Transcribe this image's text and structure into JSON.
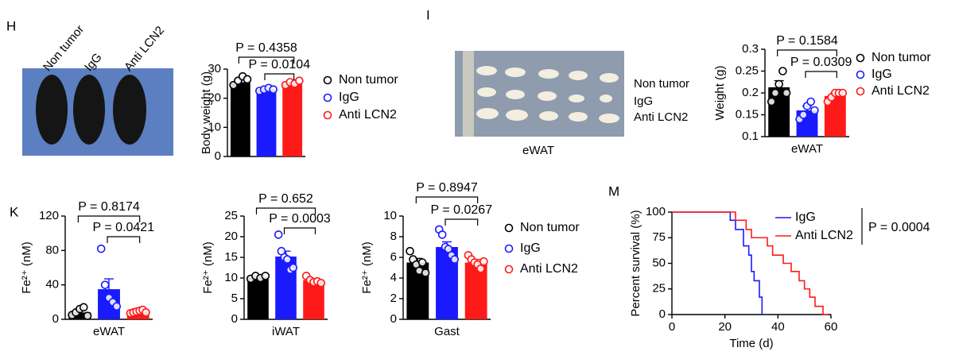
{
  "images": [
    {
      "panel": "H",
      "labels": [
        "Non tumor",
        "IgG",
        "Anti LCN2"
      ]
    },
    {
      "panel": "I",
      "labels": [
        "Non tumor",
        "IgG",
        "Anti LCN2"
      ],
      "caption": "eWAT"
    }
  ],
  "chart_data": [
    {
      "type": "bar",
      "ylabel": "Body weight (g)",
      "ylim": [
        0,
        30
      ],
      "yticks": [
        0,
        10,
        20,
        30
      ],
      "legend": true,
      "annotations": [
        "P = 0.4358",
        "P = 0.0104"
      ],
      "series": [
        {
          "name": "Non tumor",
          "color": "#000000",
          "values": [
            25.5
          ],
          "errors": [
            1
          ],
          "points": [
            24.5,
            26,
            27.5,
            26.5
          ]
        },
        {
          "name": "IgG",
          "color": "#1a1aff",
          "values": [
            23
          ],
          "errors": [
            0.4
          ],
          "points": [
            22.5,
            23,
            23.5,
            23
          ]
        },
        {
          "name": "Anti LCN2",
          "color": "#ff1a1a",
          "values": [
            25
          ],
          "errors": [
            0.4
          ],
          "points": [
            24.5,
            25.5,
            25,
            26
          ]
        }
      ]
    },
    {
      "type": "bar",
      "ylabel": "Weight (g)",
      "xlabel": "eWAT",
      "ylim": [
        0.1,
        0.3
      ],
      "yticks": [
        0.1,
        0.15,
        0.2,
        0.25,
        0.3
      ],
      "legend": true,
      "annotations": [
        "P = 0.1584",
        "P = 0.0309"
      ],
      "series": [
        {
          "name": "Non tumor",
          "color": "#000000",
          "values": [
            0.213
          ],
          "errors": [
            0.015
          ],
          "points": [
            0.18,
            0.2,
            0.22,
            0.25,
            0.2
          ]
        },
        {
          "name": "IgG",
          "color": "#1a1aff",
          "values": [
            0.16
          ],
          "errors": [
            0.01
          ],
          "points": [
            0.14,
            0.15,
            0.17,
            0.18,
            0.16
          ]
        },
        {
          "name": "Anti LCN2",
          "color": "#ff1a1a",
          "values": [
            0.193
          ],
          "errors": [
            0.007
          ],
          "points": [
            0.18,
            0.19,
            0.2,
            0.2,
            0.2
          ]
        }
      ]
    },
    {
      "type": "bar",
      "panel": "K",
      "ylabel": "Fe²⁺ (nM)",
      "xlabel": "eWAT",
      "ylim": [
        0,
        120
      ],
      "yticks": [
        0,
        40,
        80,
        120
      ],
      "legend": false,
      "annotations": [
        "P = 0.8174",
        "P = 0.0421"
      ],
      "series": [
        {
          "name": "Non tumor",
          "color": "#000000",
          "values": [
            8
          ],
          "errors": [
            3
          ],
          "points": [
            5,
            8,
            12,
            14,
            4
          ]
        },
        {
          "name": "IgG",
          "color": "#1a1aff",
          "values": [
            35
          ],
          "errors": [
            12
          ],
          "points": [
            82,
            40,
            25,
            20,
            15
          ]
        },
        {
          "name": "Anti LCN2",
          "color": "#ff1a1a",
          "values": [
            9
          ],
          "errors": [
            2
          ],
          "points": [
            7,
            8,
            9,
            10,
            11,
            8
          ]
        }
      ]
    },
    {
      "type": "bar",
      "ylabel": "Fe²⁺ (nM)",
      "xlabel": "iWAT",
      "ylim": [
        0,
        25
      ],
      "yticks": [
        0,
        5,
        10,
        15,
        20,
        25
      ],
      "legend": false,
      "annotations": [
        "P = 0.652",
        "P = 0.0003"
      ],
      "series": [
        {
          "name": "Non tumor",
          "color": "#000000",
          "values": [
            10.2
          ],
          "errors": [
            0.3
          ],
          "points": [
            9.8,
            10.5,
            10,
            10.5
          ]
        },
        {
          "name": "IgG",
          "color": "#1a1aff",
          "values": [
            15.2
          ],
          "errors": [
            1.3
          ],
          "points": [
            20.5,
            16.5,
            15,
            14.5,
            12,
            12.5
          ]
        },
        {
          "name": "Anti LCN2",
          "color": "#ff1a1a",
          "values": [
            9.5
          ],
          "errors": [
            0.4
          ],
          "points": [
            10.5,
            9.5,
            9,
            9.2,
            8.8
          ]
        }
      ]
    },
    {
      "type": "bar",
      "ylabel": "Fe²⁺ (nM)",
      "xlabel": "Gast",
      "ylim": [
        0,
        10
      ],
      "yticks": [
        0,
        2,
        4,
        6,
        8,
        10
      ],
      "legend": true,
      "annotations": [
        "P = 0.8947",
        "P = 0.0267"
      ],
      "series": [
        {
          "name": "Non tumor",
          "color": "#000000",
          "values": [
            5.5
          ],
          "errors": [
            0.4
          ],
          "points": [
            6.6,
            5.8,
            5.3,
            4.7,
            5.5,
            4.5
          ]
        },
        {
          "name": "IgG",
          "color": "#1a1aff",
          "values": [
            7
          ],
          "errors": [
            0.5
          ],
          "points": [
            8.7,
            8.2,
            7,
            6.8,
            6.2,
            5.8
          ]
        },
        {
          "name": "Anti LCN2",
          "color": "#ff1a1a",
          "values": [
            5.5
          ],
          "errors": [
            0.3
          ],
          "points": [
            6.2,
            5.8,
            5.5,
            5.3,
            4.9,
            5.6
          ]
        }
      ]
    },
    {
      "type": "line",
      "panel": "M",
      "ylabel": "Percent survival (%)",
      "xlabel": "Time (d)",
      "xlim": [
        0,
        60
      ],
      "xticks": [
        0,
        20,
        40,
        60
      ],
      "ylim": [
        0,
        100
      ],
      "yticks": [
        0,
        25,
        50,
        75,
        100
      ],
      "legend": true,
      "annotations": [
        "P = 0.0004"
      ],
      "series": [
        {
          "name": "IgG",
          "color": "#1a1aff",
          "x": [
            0,
            22,
            22,
            24,
            24,
            27,
            27,
            29,
            29,
            30,
            30,
            31,
            31,
            33,
            33,
            34,
            34
          ],
          "values": [
            100,
            100,
            92,
            92,
            83,
            83,
            67,
            67,
            58,
            58,
            42,
            42,
            33,
            33,
            17,
            17,
            0
          ]
        },
        {
          "name": "Anti LCN2",
          "color": "#ff1a1a",
          "x": [
            0,
            24,
            24,
            28,
            28,
            30,
            30,
            36,
            36,
            38,
            38,
            42,
            42,
            45,
            45,
            48,
            48,
            50,
            50,
            52,
            52,
            54,
            54,
            57,
            57,
            59,
            59
          ],
          "values": [
            100,
            100,
            92,
            92,
            83,
            83,
            75,
            75,
            67,
            67,
            58,
            58,
            50,
            50,
            42,
            42,
            33,
            33,
            25,
            25,
            17,
            17,
            8,
            8,
            0,
            0,
            0
          ]
        }
      ]
    }
  ]
}
